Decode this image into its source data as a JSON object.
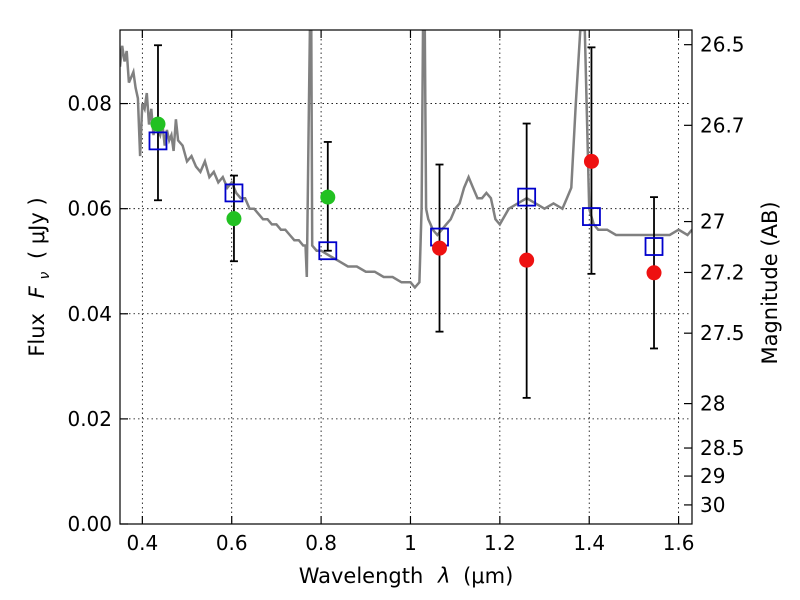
{
  "chart_data": {
    "type": "scatter",
    "xlabel": "Wavelength",
    "xlabel_symbol": "λ",
    "xlabel_unit": "(μm)",
    "ylabel": "Flux",
    "ylabel_symbol": "F",
    "ylabel_subscript": "ν",
    "ylabel_unit": "( μJy )",
    "y2label": "Magnitude (AB)",
    "xlim": [
      0.35,
      1.63
    ],
    "ylim": [
      0.0,
      0.094
    ],
    "grid": true,
    "x_ticks": [
      0.4,
      0.6,
      0.8,
      1.0,
      1.2,
      1.4,
      1.6
    ],
    "x_tick_labels": [
      "0.4",
      "0.6",
      "0.8",
      "1",
      "1.2",
      "1.4",
      "1.6"
    ],
    "y_ticks": [
      0.0,
      0.02,
      0.04,
      0.06,
      0.08
    ],
    "y_tick_labels": [
      "0.00",
      "0.02",
      "0.04",
      "0.06",
      "0.08"
    ],
    "y2_ticks": [
      26.5,
      26.7,
      27,
      27.2,
      27.5,
      28,
      28.5,
      29,
      30
    ],
    "y2_tick_labels": [
      "26.5",
      "26.7",
      "27",
      "27.2",
      "27.5",
      "28",
      "28.5",
      "29",
      "30"
    ],
    "colors": {
      "model": "#808080",
      "model_points": "#0000cc",
      "green_points": "#22c122",
      "red_points": "#ee1111",
      "error_bars": "#000000"
    },
    "series": [
      {
        "role": "model-spectrum",
        "x": [
          0.35,
          0.355,
          0.36,
          0.365,
          0.37,
          0.375,
          0.38,
          0.385,
          0.39,
          0.395,
          0.4,
          0.405,
          0.41,
          0.415,
          0.42,
          0.425,
          0.43,
          0.435,
          0.44,
          0.445,
          0.45,
          0.455,
          0.46,
          0.465,
          0.47,
          0.475,
          0.48,
          0.49,
          0.5,
          0.51,
          0.52,
          0.53,
          0.54,
          0.55,
          0.56,
          0.57,
          0.58,
          0.59,
          0.6,
          0.61,
          0.62,
          0.63,
          0.64,
          0.65,
          0.66,
          0.67,
          0.68,
          0.69,
          0.7,
          0.71,
          0.72,
          0.73,
          0.74,
          0.75,
          0.76,
          0.765,
          0.768,
          0.772,
          0.775,
          0.778,
          0.78,
          0.79,
          0.8,
          0.82,
          0.84,
          0.86,
          0.88,
          0.9,
          0.92,
          0.94,
          0.96,
          0.98,
          1.0,
          1.01,
          1.02,
          1.025,
          1.028,
          1.032,
          1.035,
          1.04,
          1.045,
          1.05,
          1.06,
          1.07,
          1.08,
          1.09,
          1.1,
          1.11,
          1.12,
          1.13,
          1.14,
          1.15,
          1.16,
          1.17,
          1.18,
          1.19,
          1.2,
          1.22,
          1.24,
          1.26,
          1.28,
          1.3,
          1.32,
          1.34,
          1.35,
          1.36,
          1.37,
          1.38,
          1.39,
          1.4,
          1.41,
          1.42,
          1.44,
          1.46,
          1.48,
          1.5,
          1.52,
          1.54,
          1.56,
          1.58,
          1.6,
          1.62,
          1.63
        ],
        "y": [
          0.087,
          0.091,
          0.088,
          0.09,
          0.084,
          0.085,
          0.086,
          0.083,
          0.081,
          0.07,
          0.08,
          0.079,
          0.082,
          0.076,
          0.079,
          0.074,
          0.077,
          0.075,
          0.074,
          0.076,
          0.072,
          0.075,
          0.073,
          0.074,
          0.071,
          0.077,
          0.073,
          0.072,
          0.069,
          0.07,
          0.068,
          0.067,
          0.069,
          0.066,
          0.067,
          0.065,
          0.066,
          0.064,
          0.065,
          0.063,
          0.062,
          0.062,
          0.06,
          0.06,
          0.059,
          0.058,
          0.058,
          0.057,
          0.057,
          0.056,
          0.056,
          0.055,
          0.054,
          0.054,
          0.053,
          0.053,
          0.047,
          0.075,
          0.094,
          0.094,
          0.053,
          0.052,
          0.052,
          0.051,
          0.05,
          0.049,
          0.049,
          0.048,
          0.048,
          0.047,
          0.047,
          0.046,
          0.046,
          0.045,
          0.046,
          0.06,
          0.094,
          0.094,
          0.06,
          0.058,
          0.057,
          0.056,
          0.055,
          0.056,
          0.057,
          0.058,
          0.06,
          0.061,
          0.064,
          0.066,
          0.064,
          0.062,
          0.062,
          0.063,
          0.062,
          0.058,
          0.057,
          0.06,
          0.061,
          0.062,
          0.061,
          0.06,
          0.061,
          0.06,
          0.062,
          0.064,
          0.08,
          0.094,
          0.094,
          0.06,
          0.057,
          0.056,
          0.056,
          0.055,
          0.055,
          0.055,
          0.055,
          0.055,
          0.055,
          0.055,
          0.056,
          0.055,
          0.056
        ]
      },
      {
        "role": "model-photometry",
        "marker": "open-square",
        "x": [
          0.435,
          0.605,
          0.815,
          1.065,
          1.26,
          1.405,
          1.545
        ],
        "y": [
          0.0729,
          0.063,
          0.052,
          0.0546,
          0.0622,
          0.0585,
          0.0528
        ]
      },
      {
        "role": "observed-green",
        "marker": "filled-circle",
        "x": [
          0.435,
          0.605,
          0.815
        ],
        "y": [
          0.0761,
          0.0581,
          0.0622
        ],
        "err_low": [
          0.0616,
          0.05,
          0.052
        ],
        "err_high": [
          0.0911,
          0.0663,
          0.0727
        ]
      },
      {
        "role": "observed-red",
        "marker": "filled-circle",
        "x": [
          1.065,
          1.26,
          1.405,
          1.545
        ],
        "y": [
          0.0525,
          0.0502,
          0.069,
          0.0478
        ],
        "err_low": [
          0.0366,
          0.024,
          0.0476,
          0.0334
        ],
        "err_high": [
          0.0684,
          0.0762,
          0.0907,
          0.0622
        ]
      }
    ]
  }
}
